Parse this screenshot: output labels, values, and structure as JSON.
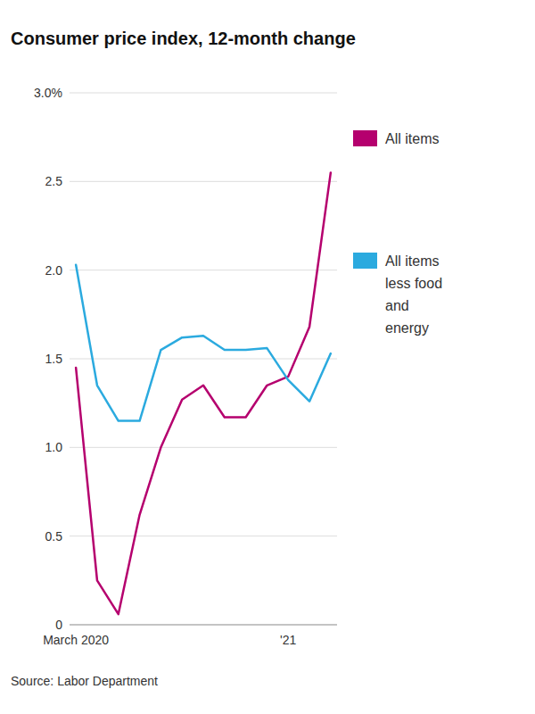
{
  "chart_data": {
    "type": "line",
    "title": "Consumer price index, 12-month change",
    "source": "Source: Labor Department",
    "categories": [
      "March 2020",
      null,
      null,
      null,
      null,
      null,
      null,
      null,
      null,
      null,
      "'21",
      null,
      null
    ],
    "series": [
      {
        "name": "All items",
        "color": "#b5006e",
        "values": [
          1.45,
          0.25,
          0.06,
          0.62,
          1.0,
          1.27,
          1.35,
          1.17,
          1.17,
          1.35,
          1.4,
          1.68,
          2.55
        ]
      },
      {
        "name": "All items\nless food\nand\nenergy",
        "color": "#2baadf",
        "values": [
          2.03,
          1.35,
          1.15,
          1.15,
          1.55,
          1.62,
          1.63,
          1.55,
          1.55,
          1.56,
          1.38,
          1.26,
          1.53
        ]
      }
    ],
    "ylim": [
      0,
      3.0
    ],
    "yticks": [
      0,
      0.5,
      {
        "value": 1.0,
        "label": "1.0"
      },
      1.5,
      {
        "value": 2.0,
        "label": "2.0"
      },
      2.5,
      {
        "value": 3.0,
        "label": "3.0%"
      }
    ],
    "grid": true,
    "legend": "right"
  }
}
